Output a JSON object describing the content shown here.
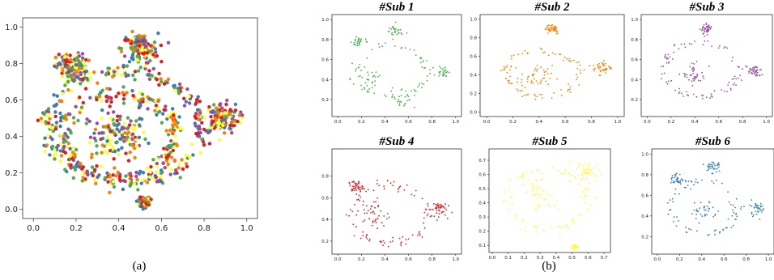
{
  "figure": {
    "caption_a": "(a)",
    "caption_b": "(b)"
  },
  "colors": {
    "green": "#4daf4a",
    "orange": "#ff7f00",
    "purple": "#984ea3",
    "red": "#e41a1c",
    "yellow": "#ffff33",
    "blue": "#377eb8"
  },
  "chart_data": [
    {
      "type": "scatter",
      "title": "",
      "xlim": [
        -0.05,
        1.05
      ],
      "ylim": [
        -0.05,
        1.05
      ],
      "x_ticks": [
        "0.0",
        "0.2",
        "0.4",
        "0.6",
        "0.8",
        "1.0"
      ],
      "y_ticks": [
        "0.0",
        "0.2",
        "0.4",
        "0.6",
        "0.8",
        "1.0"
      ],
      "series_colors": [
        "#4daf4a",
        "#ff7f00",
        "#984ea3",
        "#e41a1c",
        "#ffff33",
        "#377eb8"
      ],
      "clusters": [
        {
          "cx": 0.4,
          "cy": 0.4,
          "r": 0.11
        },
        {
          "cx": 0.4,
          "cy": 0.4,
          "ring": 0.27
        },
        {
          "cx": 0.42,
          "cy": 0.45,
          "ring": 0.36
        },
        {
          "cx": 0.5,
          "cy": 0.88,
          "r": 0.07
        },
        {
          "cx": 0.88,
          "cy": 0.5,
          "r": 0.07
        },
        {
          "cx": 0.18,
          "cy": 0.78,
          "r": 0.06
        },
        {
          "cx": 0.52,
          "cy": 0.04,
          "r": 0.02
        }
      ]
    },
    {
      "type": "scatter",
      "title": "#Sub 1",
      "color": "#4daf4a",
      "xlim": [
        -0.05,
        1.05
      ],
      "ylim": [
        0.03,
        1.05
      ],
      "x_ticks": [
        "0.0",
        "0.2",
        "0.4",
        "0.6",
        "0.8",
        "1.0"
      ],
      "y_ticks": [
        "0.2",
        "0.4",
        "0.6",
        "0.8",
        "1.0"
      ],
      "clusters": [
        {
          "cx": 0.48,
          "cy": 0.88,
          "r": 0.06
        },
        {
          "cx": 0.18,
          "cy": 0.78,
          "r": 0.05
        },
        {
          "cx": 0.25,
          "cy": 0.4,
          "r": 0.08
        },
        {
          "cx": 0.9,
          "cy": 0.48,
          "r": 0.05
        },
        {
          "cx": 0.55,
          "cy": 0.22,
          "r": 0.09
        },
        {
          "cx": 0.45,
          "cy": 0.48,
          "ring": 0.3
        }
      ]
    },
    {
      "type": "scatter",
      "title": "#Sub 2",
      "color": "#ff7f00",
      "xlim": [
        -0.05,
        1.05
      ],
      "ylim": [
        -0.05,
        1.05
      ],
      "x_ticks": [
        "0.0",
        "0.2",
        "0.4",
        "0.6",
        "0.8",
        "1.0"
      ],
      "y_ticks": [
        "0.0",
        "0.2",
        "0.4",
        "0.6",
        "0.8",
        "1.0"
      ],
      "clusters": [
        {
          "cx": 0.38,
          "cy": 0.38,
          "r": 0.1
        },
        {
          "cx": 0.42,
          "cy": 0.42,
          "ring": 0.28
        },
        {
          "cx": 0.88,
          "cy": 0.48,
          "r": 0.06
        },
        {
          "cx": 0.5,
          "cy": 0.9,
          "r": 0.05
        }
      ]
    },
    {
      "type": "scatter",
      "title": "#Sub 3",
      "color": "#984ea3",
      "xlim": [
        -0.05,
        1.05
      ],
      "ylim": [
        0.03,
        1.05
      ],
      "x_ticks": [
        "0.0",
        "0.2",
        "0.4",
        "0.6",
        "0.8",
        "1.0"
      ],
      "y_ticks": [
        "0.2",
        "0.4",
        "0.6",
        "0.8",
        "1.0"
      ],
      "clusters": [
        {
          "cx": 0.45,
          "cy": 0.5,
          "ring": 0.32
        },
        {
          "cx": 0.4,
          "cy": 0.45,
          "r": 0.08
        },
        {
          "cx": 0.9,
          "cy": 0.48,
          "r": 0.05
        },
        {
          "cx": 0.5,
          "cy": 0.9,
          "r": 0.04
        }
      ]
    },
    {
      "type": "scatter",
      "title": "#Sub 4",
      "color": "#e41a1c",
      "xlim": [
        -0.05,
        1.05
      ],
      "ylim": [
        0.08,
        1.05
      ],
      "x_ticks": [
        "0.0",
        "0.2",
        "0.4",
        "0.6",
        "0.8",
        "1.0"
      ],
      "y_ticks": [
        "0.2",
        "0.4",
        "0.6",
        "0.8"
      ],
      "clusters": [
        {
          "cx": 0.3,
          "cy": 0.45,
          "r": 0.12
        },
        {
          "cx": 0.15,
          "cy": 0.7,
          "r": 0.05
        },
        {
          "cx": 0.45,
          "cy": 0.45,
          "ring": 0.32
        },
        {
          "cx": 0.85,
          "cy": 0.5,
          "r": 0.06
        }
      ]
    },
    {
      "type": "scatter",
      "title": "#Sub 5",
      "color": "#ffff33",
      "xlim": [
        -0.02,
        0.74
      ],
      "ylim": [
        0.05,
        0.78
      ],
      "x_ticks": [
        "0.0",
        "0.1",
        "0.2",
        "0.3",
        "0.4",
        "0.5",
        "0.6",
        "0.7"
      ],
      "y_ticks": [
        "0.1",
        "0.2",
        "0.3",
        "0.4",
        "0.5",
        "0.6",
        "0.7"
      ],
      "clusters": [
        {
          "cx": 0.35,
          "cy": 0.42,
          "ring": 0.25
        },
        {
          "cx": 0.3,
          "cy": 0.45,
          "r": 0.08
        },
        {
          "cx": 0.6,
          "cy": 0.62,
          "r": 0.06
        },
        {
          "cx": 0.52,
          "cy": 0.09,
          "r": 0.015
        }
      ]
    },
    {
      "type": "scatter",
      "title": "#Sub 6",
      "color": "#377eb8",
      "xlim": [
        -0.05,
        1.05
      ],
      "ylim": [
        0.03,
        1.05
      ],
      "x_ticks": [
        "0.0",
        "0.2",
        "0.4",
        "0.6",
        "0.8",
        "1.0"
      ],
      "y_ticks": [
        "0.2",
        "0.4",
        "0.6",
        "0.8",
        "1.0"
      ],
      "clusters": [
        {
          "cx": 0.42,
          "cy": 0.45,
          "r": 0.1
        },
        {
          "cx": 0.42,
          "cy": 0.48,
          "ring": 0.3
        },
        {
          "cx": 0.5,
          "cy": 0.88,
          "r": 0.06
        },
        {
          "cx": 0.18,
          "cy": 0.75,
          "r": 0.05
        },
        {
          "cx": 0.9,
          "cy": 0.48,
          "r": 0.06
        }
      ]
    }
  ]
}
